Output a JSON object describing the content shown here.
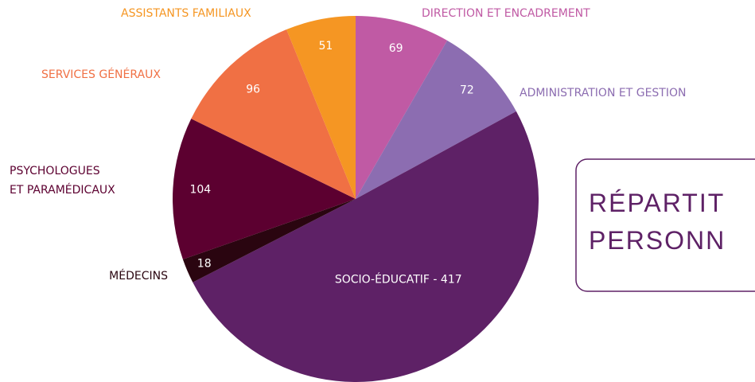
{
  "chart_data": {
    "type": "pie",
    "title_lines": [
      "RÉPARTIT",
      "PERSONN"
    ],
    "categories": [
      "DIRECTION ET ENCADREMENT",
      "ADMINISTRATION ET GESTION",
      "SOCIO-ÉDUCATIF",
      "MÉDECINS",
      "PSYCHOLOGUES\nET PARAMÉDICAUX",
      "SERVICES GÉNÉRAUX",
      "ASSISTANTS FAMILIAUX"
    ],
    "values": [
      69,
      72,
      417,
      18,
      104,
      96,
      51
    ],
    "value_labels": [
      "69",
      "72",
      "SOCIO-ÉDUCATIF - 417",
      "18",
      "104",
      "96",
      "51"
    ],
    "colors": [
      "#c05aa4",
      "#8c6db1",
      "#5e2166",
      "#2a0510",
      "#5c0030",
      "#f07044",
      "#f59623"
    ]
  }
}
